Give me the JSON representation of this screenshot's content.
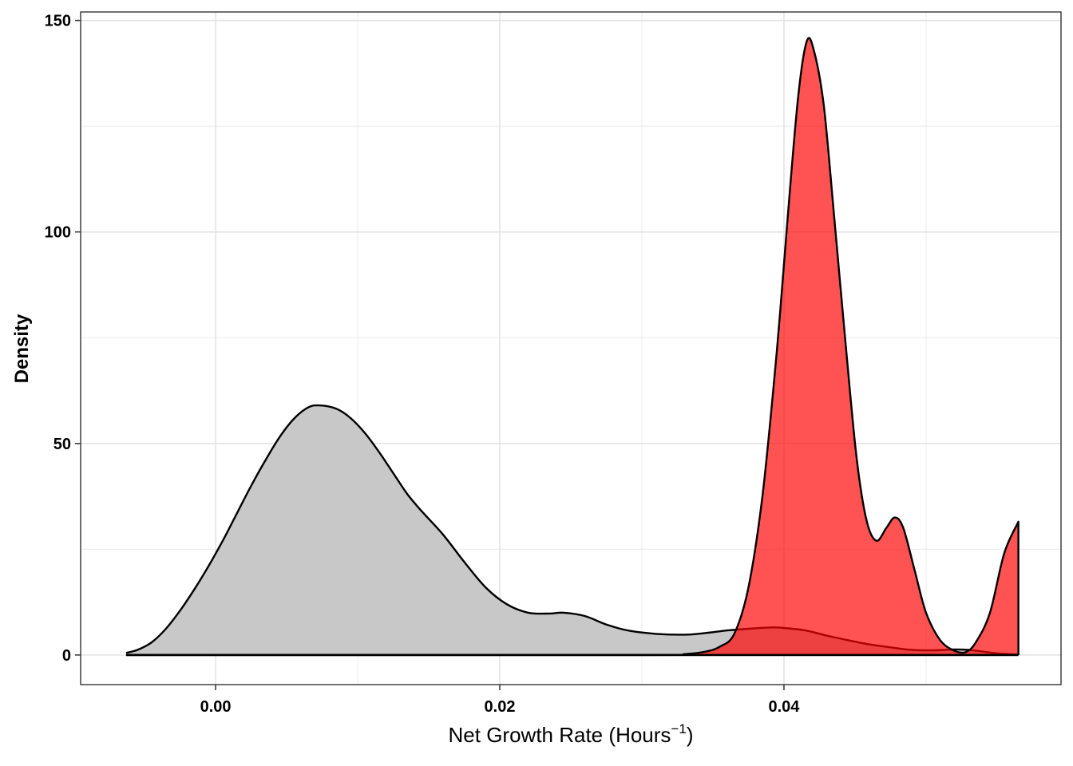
{
  "chart_data": {
    "type": "area",
    "title": "",
    "xlabel": {
      "main": "Net Growth Rate",
      "unit_base": "Hours",
      "unit_exponent": "−1"
    },
    "ylabel": "Density",
    "xlim": [
      -0.0095,
      0.0595
    ],
    "ylim": [
      -7,
      152
    ],
    "x_ticks": [
      {
        "value": 0.0,
        "label": "0.00"
      },
      {
        "value": 0.02,
        "label": "0.02"
      },
      {
        "value": 0.04,
        "label": "0.04"
      }
    ],
    "y_ticks": [
      {
        "value": 0,
        "label": "0"
      },
      {
        "value": 50,
        "label": "50"
      },
      {
        "value": 100,
        "label": "100"
      },
      {
        "value": 150,
        "label": "150"
      }
    ],
    "x_minor_grid": [
      0.01,
      0.03,
      0.05
    ],
    "y_minor_grid": [
      25,
      75,
      125
    ],
    "grid": true,
    "legend": "none",
    "series": [
      {
        "fill": "#c8c8c8",
        "opacity": 1,
        "points": [
          [
            -0.0063,
            0.5
          ],
          [
            -0.0055,
            1.2
          ],
          [
            -0.0045,
            3.0
          ],
          [
            -0.0035,
            6.2
          ],
          [
            -0.0025,
            10.5
          ],
          [
            -0.0015,
            15.5
          ],
          [
            -0.0005,
            21.0
          ],
          [
            0.0005,
            27.0
          ],
          [
            0.0015,
            33.5
          ],
          [
            0.0025,
            40.0
          ],
          [
            0.0035,
            46.0
          ],
          [
            0.0045,
            51.5
          ],
          [
            0.0055,
            55.8
          ],
          [
            0.0065,
            58.5
          ],
          [
            0.0073,
            59.0
          ],
          [
            0.0085,
            58.2
          ],
          [
            0.0095,
            56.0
          ],
          [
            0.0105,
            52.5
          ],
          [
            0.0115,
            48.0
          ],
          [
            0.0125,
            43.0
          ],
          [
            0.0135,
            38.0
          ],
          [
            0.0145,
            34.0
          ],
          [
            0.016,
            28.5
          ],
          [
            0.0175,
            22.0
          ],
          [
            0.019,
            16.0
          ],
          [
            0.0205,
            12.0
          ],
          [
            0.022,
            10.0
          ],
          [
            0.0235,
            9.8
          ],
          [
            0.0245,
            10.0
          ],
          [
            0.026,
            9.2
          ],
          [
            0.0275,
            7.2
          ],
          [
            0.029,
            5.8
          ],
          [
            0.031,
            5.0
          ],
          [
            0.033,
            4.8
          ],
          [
            0.0345,
            5.2
          ],
          [
            0.036,
            5.8
          ],
          [
            0.0375,
            6.2
          ],
          [
            0.039,
            6.5
          ],
          [
            0.04,
            6.4
          ],
          [
            0.0415,
            5.8
          ],
          [
            0.043,
            4.6
          ],
          [
            0.0445,
            3.5
          ],
          [
            0.046,
            2.5
          ],
          [
            0.0475,
            1.8
          ],
          [
            0.049,
            1.2
          ],
          [
            0.0505,
            1.1
          ],
          [
            0.052,
            1.3
          ],
          [
            0.053,
            1.2
          ],
          [
            0.054,
            0.8
          ],
          [
            0.055,
            0.4
          ],
          [
            0.0565,
            0.1
          ]
        ]
      },
      {
        "fill": "#ff0000",
        "opacity": 0.68,
        "points": [
          [
            -0.0063,
            0
          ],
          [
            0.03,
            0
          ],
          [
            0.033,
            0.2
          ],
          [
            0.0345,
            0.8
          ],
          [
            0.0355,
            2.0
          ],
          [
            0.0365,
            5.0
          ],
          [
            0.0375,
            16.0
          ],
          [
            0.0385,
            38.0
          ],
          [
            0.0395,
            72.0
          ],
          [
            0.0403,
            105.0
          ],
          [
            0.041,
            132.0
          ],
          [
            0.0416,
            145.0
          ],
          [
            0.0421,
            143.0
          ],
          [
            0.0428,
            130.0
          ],
          [
            0.0435,
            105.0
          ],
          [
            0.0443,
            75.0
          ],
          [
            0.0451,
            47.0
          ],
          [
            0.0458,
            32.0
          ],
          [
            0.0465,
            27.0
          ],
          [
            0.0472,
            30.0
          ],
          [
            0.0478,
            32.5
          ],
          [
            0.0484,
            30.0
          ],
          [
            0.0492,
            20.0
          ],
          [
            0.05,
            10.0
          ],
          [
            0.051,
            3.5
          ],
          [
            0.052,
            1.0
          ],
          [
            0.0528,
            0.7
          ],
          [
            0.0535,
            3.0
          ],
          [
            0.0545,
            10.0
          ],
          [
            0.0555,
            24.0
          ],
          [
            0.0565,
            31.5
          ]
        ]
      }
    ]
  }
}
